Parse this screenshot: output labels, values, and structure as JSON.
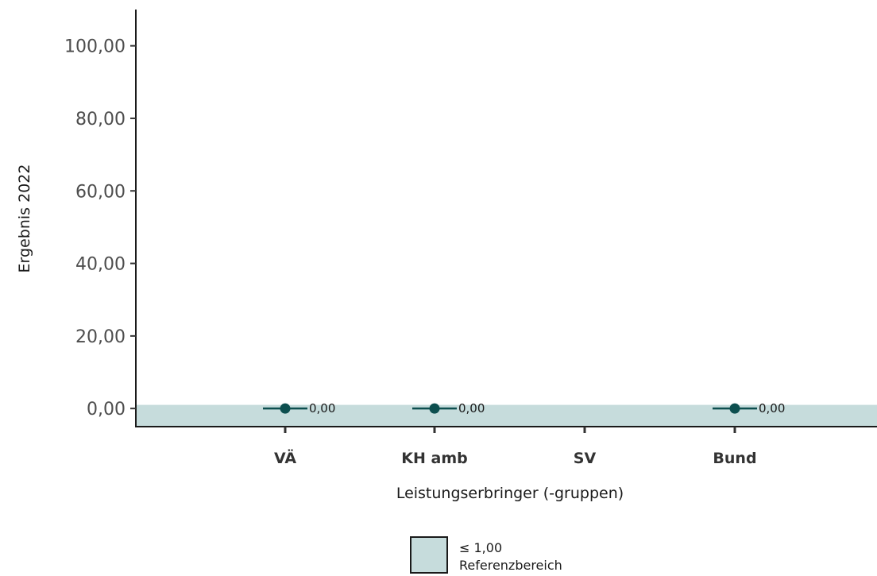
{
  "chart_data": {
    "type": "scatter",
    "categories": [
      "VÄ",
      "KH amb",
      "SV",
      "Bund"
    ],
    "series": [
      {
        "values": [
          0.0,
          0.0,
          null,
          0.0
        ],
        "data_labels": [
          "0,00",
          "0,00",
          "",
          "0,00"
        ]
      }
    ],
    "y_ticks": [
      0,
      20,
      40,
      60,
      80,
      100
    ],
    "y_tick_labels": [
      "0,00",
      "20,00",
      "40,00",
      "60,00",
      "80,00",
      "100,00"
    ],
    "ylim": [
      -5,
      110
    ],
    "xlabel": "Leistungserbringer (-gruppen)",
    "ylabel": "Ergebnis 2022",
    "reference_range": {
      "max": 1.0,
      "label": "≤ 1,00",
      "legend_text": "Referenzbereich"
    },
    "grid": false,
    "legend_position": "bottom",
    "colors": {
      "point": "#0d4f4f",
      "reference_fill": "#c6dcdc",
      "axis": "#1a1a1a"
    }
  }
}
